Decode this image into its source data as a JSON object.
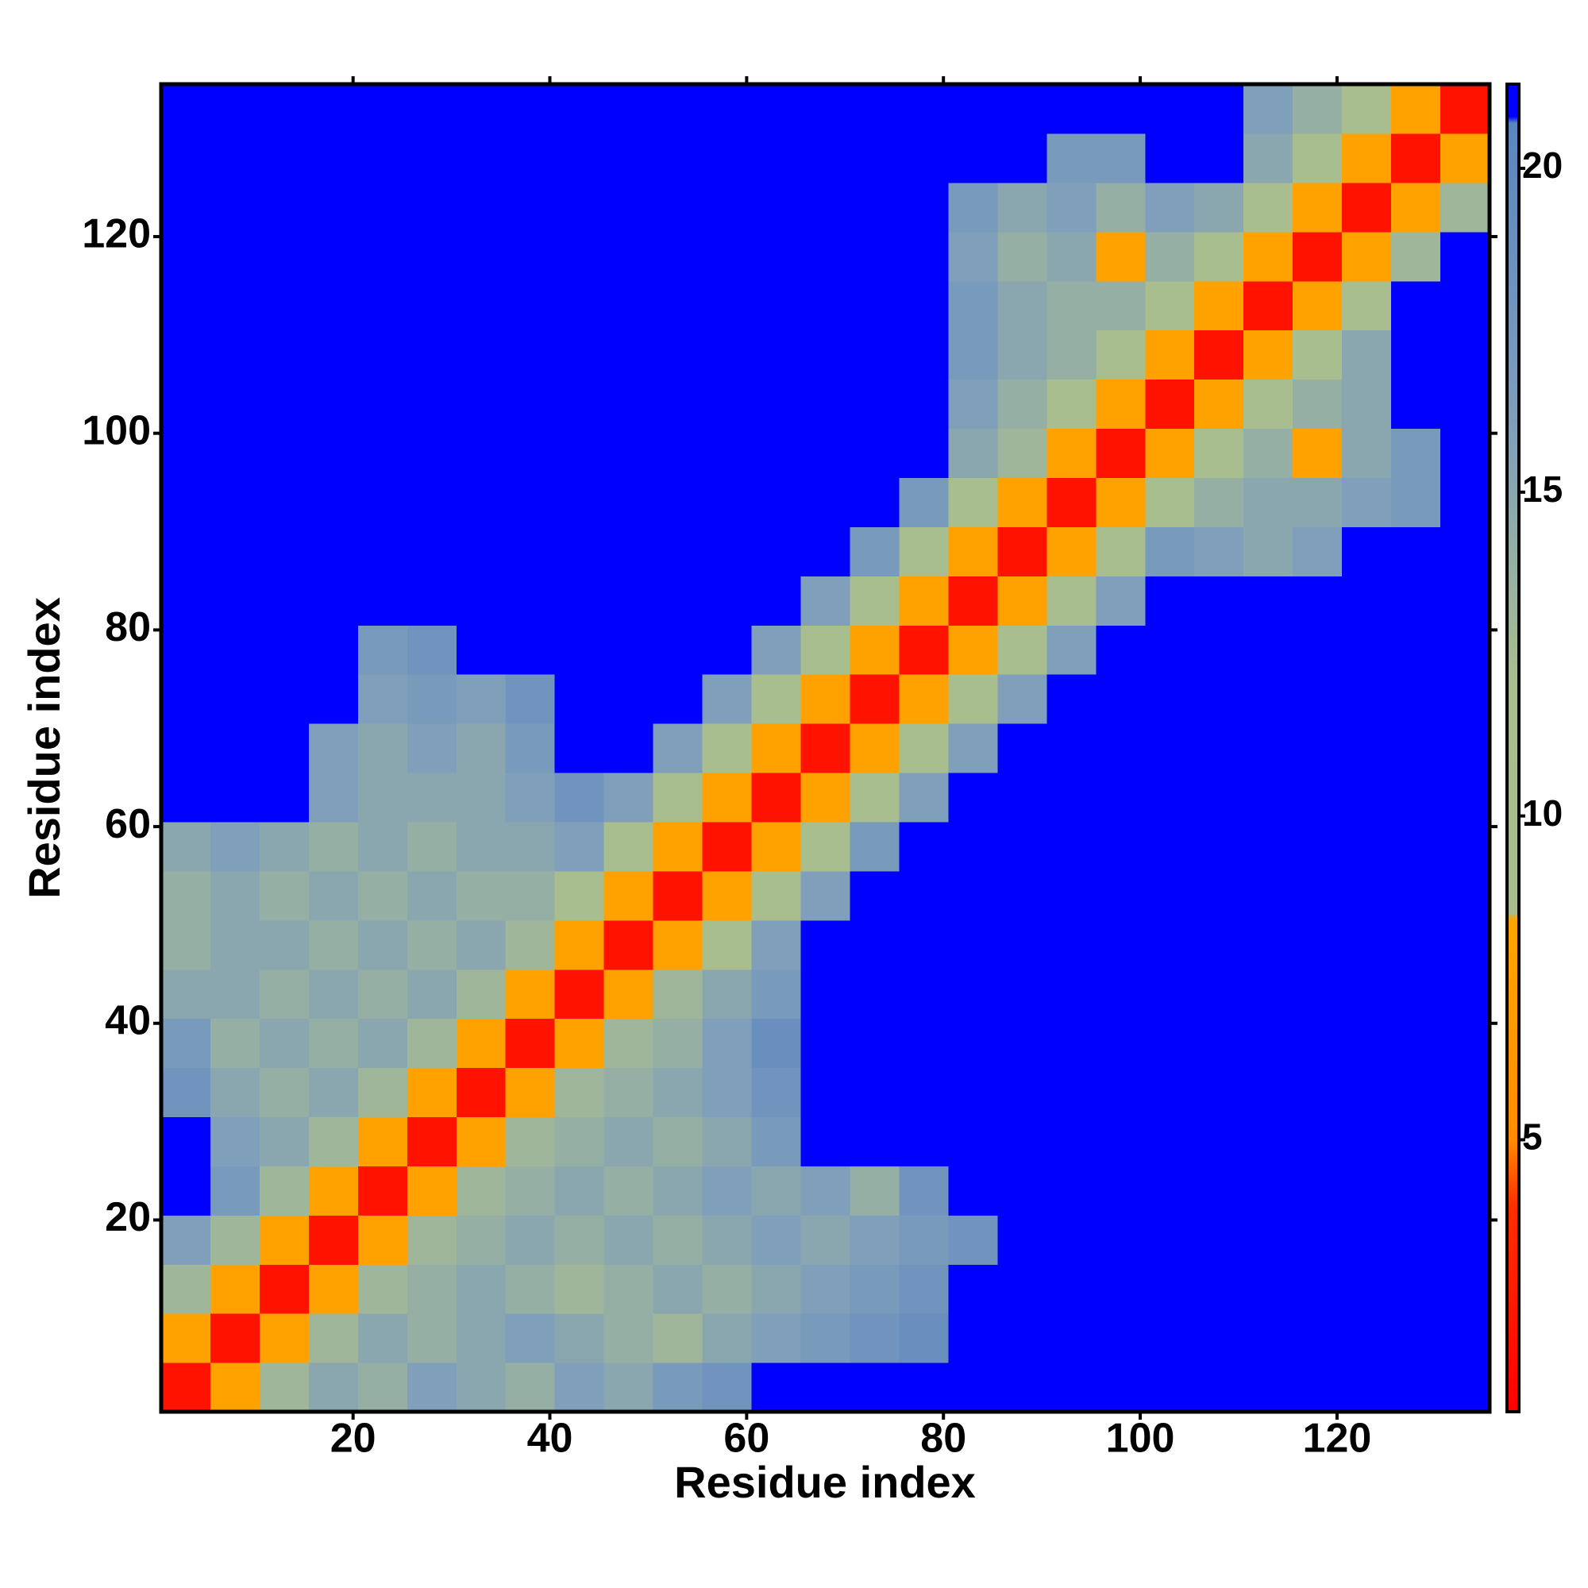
{
  "chart_data": {
    "type": "heatmap",
    "xlabel": "Residue index",
    "ylabel": "Residue index",
    "xlim": [
      0.5,
      135.5
    ],
    "ylim": [
      0.5,
      135.5
    ],
    "xticks": [
      20,
      40,
      60,
      80,
      100,
      120
    ],
    "yticks": [
      20,
      40,
      60,
      80,
      100,
      120
    ],
    "x_bins": [
      0.5,
      5.5,
      10.5,
      15.5,
      20.5,
      25.5,
      30.5,
      35.5,
      40.5,
      45.5,
      50.5,
      55.5,
      60.5,
      65.5,
      70.5,
      75.5,
      80.5,
      85.5,
      90.5,
      95.5,
      100.5,
      105.5,
      110.5,
      115.5,
      120.5,
      125.5,
      130.5,
      135.5
    ],
    "y_bins": [
      0.5,
      5.5,
      10.5,
      15.5,
      20.5,
      25.5,
      30.5,
      35.5,
      40.5,
      45.5,
      50.5,
      55.5,
      60.5,
      65.5,
      70.5,
      75.5,
      80.5,
      85.5,
      90.5,
      95.5,
      100.5,
      105.5,
      110.5,
      115.5,
      120.5,
      125.5,
      130.5,
      135.5
    ],
    "zlim": [
      0.8,
      21.3
    ],
    "zticks": [
      5,
      10,
      15,
      20
    ],
    "colorscale": [
      [
        0.8,
        "#ff0000"
      ],
      [
        4,
        "#ff3000"
      ],
      [
        5,
        "#ff8c00"
      ],
      [
        8.4,
        "#ffa500"
      ],
      [
        8.5,
        "#a8bc8e"
      ],
      [
        12,
        "#a9be8f"
      ],
      [
        16,
        "#809fba"
      ],
      [
        20.7,
        "#5a86c0"
      ],
      [
        20.8,
        "#0000ff"
      ],
      [
        21.3,
        "#0000ff"
      ]
    ],
    "z": [
      [
        2,
        8,
        13,
        15,
        14,
        16,
        15,
        14,
        16,
        15,
        17,
        18,
        21.3,
        21.3,
        21.3,
        21.3,
        21.3,
        21.3,
        21.3,
        21.3,
        21.3,
        21.3,
        21.3,
        21.3,
        21.3,
        21.3,
        21.3
      ],
      [
        8,
        2,
        8,
        13,
        15,
        14,
        15,
        16,
        15,
        14,
        13,
        15,
        16,
        17,
        18,
        19,
        21.3,
        21.3,
        21.3,
        21.3,
        21.3,
        21.3,
        21.3,
        21.3,
        21.3,
        21.3,
        21.3
      ],
      [
        13,
        8,
        2,
        8,
        13,
        14,
        15,
        14,
        13,
        14,
        15,
        14,
        15,
        16,
        17,
        18,
        21.3,
        21.3,
        21.3,
        21.3,
        21.3,
        21.3,
        21.3,
        21.3,
        21.3,
        21.3,
        21.3
      ],
      [
        16,
        13,
        8,
        2,
        8,
        13,
        14,
        15,
        14,
        15,
        14,
        15,
        16,
        15,
        16,
        17,
        18,
        21.3,
        21.3,
        21.3,
        21.3,
        21.3,
        21.3,
        21.3,
        21.3,
        21.3,
        21.3
      ],
      [
        21.3,
        17,
        13,
        8,
        2,
        8,
        13,
        14,
        15,
        14,
        15,
        16,
        15,
        16,
        14,
        18,
        21.3,
        21.3,
        21.3,
        21.3,
        21.3,
        21.3,
        21.3,
        21.3,
        21.3,
        21.3,
        21.3
      ],
      [
        21.3,
        16,
        15,
        13,
        8,
        2,
        8,
        13,
        14,
        15,
        14,
        15,
        17,
        21.3,
        21.3,
        21.3,
        21.3,
        21.3,
        21.3,
        21.3,
        21.3,
        21.3,
        21.3,
        21.3,
        21.3,
        21.3,
        21.3
      ],
      [
        18,
        15,
        14,
        15,
        13,
        8,
        2,
        8,
        13,
        14,
        15,
        16,
        18,
        21.3,
        21.3,
        21.3,
        21.3,
        21.3,
        21.3,
        21.3,
        21.3,
        21.3,
        21.3,
        21.3,
        21.3,
        21.3,
        21.3
      ],
      [
        17,
        14,
        15,
        14,
        15,
        13,
        8,
        2,
        8,
        13,
        14,
        16,
        19,
        21.3,
        21.3,
        21.3,
        21.3,
        21.3,
        21.3,
        21.3,
        21.3,
        21.3,
        21.3,
        21.3,
        21.3,
        21.3,
        21.3
      ],
      [
        15,
        15,
        14,
        15,
        14,
        15,
        13,
        8,
        2,
        8,
        13,
        15,
        17,
        21.3,
        21.3,
        21.3,
        21.3,
        21.3,
        21.3,
        21.3,
        21.3,
        21.3,
        21.3,
        21.3,
        21.3,
        21.3,
        21.3
      ],
      [
        14,
        15,
        15,
        14,
        15,
        14,
        15,
        13,
        8,
        2,
        8,
        12,
        16,
        21.3,
        21.3,
        21.3,
        21.3,
        21.3,
        21.3,
        21.3,
        21.3,
        21.3,
        21.3,
        21.3,
        21.3,
        21.3,
        21.3
      ],
      [
        14,
        15,
        14,
        15,
        14,
        15,
        14,
        14,
        12,
        8,
        2,
        8,
        12,
        16,
        21.3,
        21.3,
        21.3,
        21.3,
        21.3,
        21.3,
        21.3,
        21.3,
        21.3,
        21.3,
        21.3,
        21.3,
        21.3
      ],
      [
        15,
        16,
        15,
        14,
        15,
        14,
        15,
        15,
        16,
        12,
        8,
        2,
        8,
        12,
        17,
        21.3,
        21.3,
        21.3,
        21.3,
        21.3,
        21.3,
        21.3,
        21.3,
        21.3,
        21.3,
        21.3,
        21.3
      ],
      [
        21.3,
        21.3,
        21.3,
        16,
        15,
        15,
        15,
        16,
        18,
        16,
        12,
        8,
        2,
        8,
        12,
        16,
        21.3,
        21.3,
        21.3,
        21.3,
        21.3,
        21.3,
        21.3,
        21.3,
        21.3,
        21.3,
        21.3
      ],
      [
        21.3,
        21.3,
        21.3,
        16,
        15,
        16,
        15,
        17,
        21.3,
        21.3,
        16,
        12,
        8,
        2,
        8,
        12,
        16,
        21.3,
        21.3,
        21.3,
        21.3,
        21.3,
        21.3,
        21.3,
        21.3,
        21.3,
        21.3
      ],
      [
        21.3,
        21.3,
        21.3,
        21.3,
        16,
        17,
        16,
        18,
        21.3,
        21.3,
        21.3,
        16,
        12,
        8,
        2,
        8,
        12,
        16,
        21.3,
        21.3,
        21.3,
        21.3,
        21.3,
        21.3,
        21.3,
        21.3,
        21.3
      ],
      [
        21.3,
        21.3,
        21.3,
        21.3,
        17,
        18,
        21.3,
        21.3,
        21.3,
        21.3,
        21.3,
        21.3,
        16,
        12,
        8,
        2,
        8,
        12,
        16,
        21.3,
        21.3,
        21.3,
        21.3,
        21.3,
        21.3,
        21.3,
        21.3
      ],
      [
        21.3,
        21.3,
        21.3,
        21.3,
        21.3,
        21.3,
        21.3,
        21.3,
        21.3,
        21.3,
        21.3,
        21.3,
        21.3,
        16,
        12,
        8,
        2,
        8,
        12,
        16,
        21.3,
        21.3,
        21.3,
        21.3,
        21.3,
        21.3,
        21.3
      ],
      [
        21.3,
        21.3,
        21.3,
        21.3,
        21.3,
        21.3,
        21.3,
        21.3,
        21.3,
        21.3,
        21.3,
        21.3,
        21.3,
        21.3,
        17,
        12,
        8,
        2,
        8,
        12,
        17,
        16,
        15,
        16,
        21.3,
        21.3,
        21.3
      ],
      [
        21.3,
        21.3,
        21.3,
        21.3,
        21.3,
        21.3,
        21.3,
        21.3,
        21.3,
        21.3,
        21.3,
        21.3,
        21.3,
        21.3,
        21.3,
        17,
        12,
        8,
        2,
        8,
        12,
        14,
        15,
        15,
        16,
        17,
        21.3
      ],
      [
        21.3,
        21.3,
        21.3,
        21.3,
        21.3,
        21.3,
        21.3,
        21.3,
        21.3,
        21.3,
        21.3,
        21.3,
        21.3,
        21.3,
        21.3,
        21.3,
        15,
        13,
        8,
        2,
        8,
        12,
        14,
        8,
        15,
        17,
        21.3
      ],
      [
        21.3,
        21.3,
        21.3,
        21.3,
        21.3,
        21.3,
        21.3,
        21.3,
        21.3,
        21.3,
        21.3,
        21.3,
        21.3,
        21.3,
        21.3,
        21.3,
        16,
        14,
        12,
        8,
        2,
        8,
        12,
        14,
        15,
        21.3,
        21.3
      ],
      [
        21.3,
        21.3,
        21.3,
        21.3,
        21.3,
        21.3,
        21.3,
        21.3,
        21.3,
        21.3,
        21.3,
        21.3,
        21.3,
        21.3,
        21.3,
        21.3,
        17,
        15,
        14,
        12,
        8,
        2,
        8,
        12,
        15,
        21.3,
        21.3
      ],
      [
        21.3,
        21.3,
        21.3,
        21.3,
        21.3,
        21.3,
        21.3,
        21.3,
        21.3,
        21.3,
        21.3,
        21.3,
        21.3,
        21.3,
        21.3,
        21.3,
        17,
        15,
        14,
        14,
        12,
        8,
        2,
        8,
        12,
        21.3,
        21.3
      ],
      [
        21.3,
        21.3,
        21.3,
        21.3,
        21.3,
        21.3,
        21.3,
        21.3,
        21.3,
        21.3,
        21.3,
        21.3,
        21.3,
        21.3,
        21.3,
        21.3,
        16,
        14,
        15,
        8,
        14,
        12,
        8,
        2,
        8,
        13,
        21.3
      ],
      [
        21.3,
        21.3,
        21.3,
        21.3,
        21.3,
        21.3,
        21.3,
        21.3,
        21.3,
        21.3,
        21.3,
        21.3,
        21.3,
        21.3,
        21.3,
        21.3,
        17,
        15,
        16,
        14,
        16,
        15,
        12,
        8,
        2,
        8,
        13
      ],
      [
        21.3,
        21.3,
        21.3,
        21.3,
        21.3,
        21.3,
        21.3,
        21.3,
        21.3,
        21.3,
        21.3,
        21.3,
        21.3,
        21.3,
        21.3,
        21.3,
        21.3,
        21.3,
        17,
        17,
        21.3,
        21.3,
        15,
        12,
        8,
        2,
        8
      ],
      [
        21.3,
        21.3,
        21.3,
        21.3,
        21.3,
        21.3,
        21.3,
        21.3,
        21.3,
        21.3,
        21.3,
        21.3,
        21.3,
        21.3,
        21.3,
        21.3,
        21.3,
        21.3,
        21.3,
        21.3,
        21.3,
        21.3,
        16,
        14,
        12,
        8,
        2
      ]
    ]
  }
}
